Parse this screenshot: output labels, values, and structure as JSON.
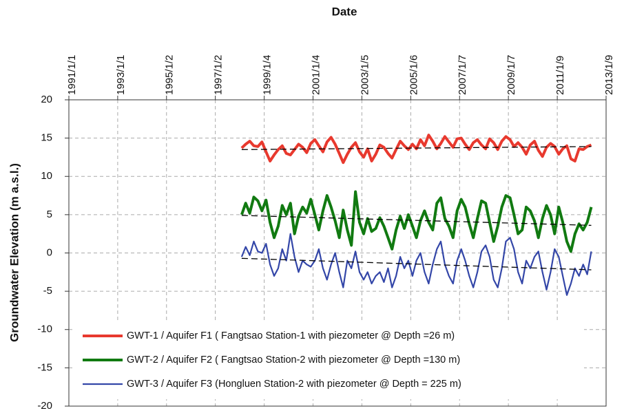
{
  "chart_data": {
    "type": "line",
    "xlabel": "Date",
    "ylabel": "Groundwater Elevation (m a.s.l.)",
    "xlim": [
      "1991-01-01",
      "2013-01-09"
    ],
    "xticks": [
      {
        "value": "1991-01-01",
        "label": "1991/1/1"
      },
      {
        "value": "1993-01-01",
        "label": "1993/1/1"
      },
      {
        "value": "1995-01-02",
        "label": "1995/1/2"
      },
      {
        "value": "1997-01-02",
        "label": "1997/1/2"
      },
      {
        "value": "1999-01-04",
        "label": "1999/1/4"
      },
      {
        "value": "2001-01-04",
        "label": "2001/1/4"
      },
      {
        "value": "2003-01-05",
        "label": "2003/1/5"
      },
      {
        "value": "2005-01-06",
        "label": "2005/1/6"
      },
      {
        "value": "2007-01-07",
        "label": "2007/1/7"
      },
      {
        "value": "2009-01-07",
        "label": "2009/1/7"
      },
      {
        "value": "2011-01-09",
        "label": "2011/1/9"
      },
      {
        "value": "2013-01-09",
        "label": "2013/1/9"
      }
    ],
    "ylim": [
      -20,
      20
    ],
    "yticks": [
      -20,
      -15,
      -10,
      -5,
      0,
      5,
      10,
      15,
      20
    ],
    "grid": true,
    "legend": "lower left",
    "x": [
      "1998-02-01",
      "1998-04-01",
      "1998-06-01",
      "1998-08-01",
      "1998-10-01",
      "1998-12-01",
      "1999-02-01",
      "1999-04-01",
      "1999-06-01",
      "1999-08-01",
      "1999-10-01",
      "1999-12-01",
      "2000-02-01",
      "2000-04-01",
      "2000-06-01",
      "2000-08-01",
      "2000-10-01",
      "2000-12-01",
      "2001-02-01",
      "2001-04-01",
      "2001-06-01",
      "2001-08-01",
      "2001-10-01",
      "2001-12-01",
      "2002-02-01",
      "2002-04-01",
      "2002-06-01",
      "2002-08-01",
      "2002-10-01",
      "2002-12-01",
      "2003-02-01",
      "2003-04-01",
      "2003-06-01",
      "2003-08-01",
      "2003-10-01",
      "2003-12-01",
      "2004-02-01",
      "2004-04-01",
      "2004-06-01",
      "2004-08-01",
      "2004-10-01",
      "2004-12-01",
      "2005-02-01",
      "2005-04-01",
      "2005-06-01",
      "2005-08-01",
      "2005-10-01",
      "2005-12-01",
      "2006-02-01",
      "2006-04-01",
      "2006-06-01",
      "2006-08-01",
      "2006-10-01",
      "2006-12-01",
      "2007-02-01",
      "2007-04-01",
      "2007-06-01",
      "2007-08-01",
      "2007-10-01",
      "2007-12-01",
      "2008-02-01",
      "2008-04-01",
      "2008-06-01",
      "2008-08-01",
      "2008-10-01",
      "2008-12-01",
      "2009-02-01",
      "2009-04-01",
      "2009-06-01",
      "2009-08-01",
      "2009-10-01",
      "2009-12-01",
      "2010-02-01",
      "2010-04-01",
      "2010-06-01",
      "2010-08-01",
      "2010-10-01",
      "2010-12-01",
      "2011-02-01",
      "2011-04-01",
      "2011-06-01",
      "2011-08-01",
      "2011-10-01",
      "2011-12-01",
      "2012-02-01",
      "2012-04-01",
      "2012-06-01"
    ],
    "series": [
      {
        "name": "GWT-1 / Aquifer F1 ( Fangtsao Station-1 with piezometer @ Depth =26 m)",
        "color": "#e8392e",
        "width": 4,
        "values": [
          13.7,
          14.2,
          14.6,
          14.0,
          13.9,
          14.5,
          13.2,
          12.0,
          12.8,
          13.5,
          14.0,
          13.0,
          12.8,
          13.5,
          14.2,
          13.8,
          13.1,
          14.3,
          14.8,
          14.0,
          13.2,
          14.5,
          15.1,
          14.2,
          13.0,
          11.8,
          12.9,
          13.8,
          14.4,
          13.2,
          12.5,
          13.6,
          12.0,
          12.9,
          14.1,
          13.8,
          13.0,
          12.4,
          13.5,
          14.6,
          14.0,
          13.5,
          14.2,
          13.6,
          14.8,
          14.0,
          15.4,
          14.6,
          13.6,
          14.3,
          15.2,
          14.5,
          13.8,
          14.9,
          15.0,
          14.2,
          13.5,
          14.4,
          14.8,
          14.1,
          13.6,
          14.9,
          14.4,
          13.5,
          14.6,
          15.2,
          14.8,
          13.9,
          14.4,
          13.8,
          12.9,
          14.1,
          14.6,
          13.4,
          12.6,
          13.8,
          14.3,
          13.9,
          12.9,
          13.6,
          14.0,
          12.3,
          12.0,
          13.6,
          13.5,
          13.9,
          14.1
        ]
      },
      {
        "name": "GWT-2 / Aquifer F2 ( Fangtsao Station-2 with piezometer @ Depth =130 m)",
        "color": "#117a11",
        "width": 4,
        "values": [
          5.0,
          6.5,
          5.2,
          7.3,
          6.8,
          5.5,
          6.9,
          4.0,
          2.0,
          3.5,
          6.2,
          5.0,
          6.5,
          2.5,
          4.8,
          6.0,
          5.2,
          7.0,
          5.0,
          3.0,
          5.5,
          7.5,
          6.0,
          4.2,
          2.0,
          5.6,
          3.0,
          1.0,
          8.0,
          4.0,
          2.5,
          4.5,
          2.8,
          3.2,
          4.6,
          3.5,
          2.0,
          0.5,
          3.0,
          4.8,
          3.2,
          5.0,
          3.5,
          2.0,
          4.2,
          5.5,
          4.0,
          3.0,
          6.5,
          7.2,
          4.5,
          3.5,
          2.0,
          5.5,
          7.0,
          6.0,
          3.8,
          2.0,
          4.5,
          6.8,
          6.5,
          4.0,
          1.5,
          3.5,
          6.0,
          7.5,
          7.2,
          5.0,
          2.5,
          3.0,
          6.0,
          5.5,
          4.2,
          2.0,
          4.5,
          6.2,
          5.0,
          2.5,
          6.0,
          4.0,
          1.5,
          0.2,
          2.5,
          3.8,
          3.0,
          4.0,
          6.0
        ]
      },
      {
        "name": "GWT-3 / Aquifer F3 (Hongluen Station-2 with piezometer @ Depth = 225 m)",
        "color": "#3346a8",
        "width": 2.2,
        "values": [
          -0.5,
          0.8,
          -0.3,
          1.5,
          0.2,
          0.0,
          1.2,
          -1.5,
          -3.0,
          -2.0,
          0.5,
          -1.0,
          2.5,
          -0.5,
          -2.5,
          -1.0,
          -1.5,
          -1.8,
          -1.0,
          0.5,
          -2.0,
          -3.5,
          -1.5,
          0.0,
          -2.5,
          -4.5,
          -1.0,
          -2.0,
          0.2,
          -2.5,
          -3.5,
          -2.5,
          -4.0,
          -3.0,
          -2.5,
          -3.8,
          -2.0,
          -4.5,
          -3.0,
          -0.5,
          -2.0,
          -1.0,
          -3.0,
          -1.0,
          0.0,
          -2.5,
          -4.0,
          -1.5,
          0.5,
          1.5,
          -1.5,
          -3.0,
          -4.0,
          -1.0,
          0.5,
          -1.0,
          -3.0,
          -4.5,
          -2.5,
          0.2,
          1.0,
          -0.5,
          -3.5,
          -4.5,
          -2.0,
          1.5,
          2.0,
          0.5,
          -2.5,
          -4.0,
          -1.0,
          -2.0,
          -0.5,
          0.2,
          -2.5,
          -4.8,
          -2.5,
          0.5,
          -0.5,
          -3.0,
          -5.5,
          -4.0,
          -2.0,
          -3.0,
          -1.5,
          -2.8,
          0.2
        ]
      }
    ],
    "trend_lines": [
      {
        "x": [
          "1998-02-01",
          "2012-06-01"
        ],
        "values": [
          13.5,
          13.9
        ],
        "color": "#000000"
      },
      {
        "x": [
          "1998-02-01",
          "2012-06-01"
        ],
        "values": [
          4.9,
          3.6
        ],
        "color": "#000000"
      },
      {
        "x": [
          "1998-02-01",
          "2012-06-01"
        ],
        "values": [
          -0.7,
          -2.2
        ],
        "color": "#000000"
      }
    ]
  }
}
